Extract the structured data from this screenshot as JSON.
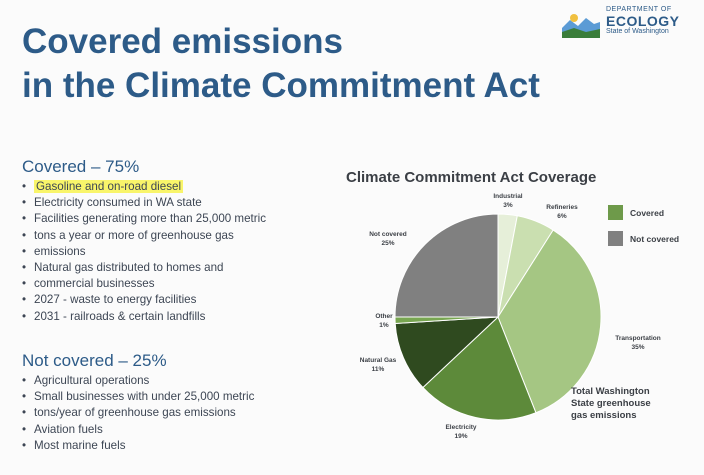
{
  "title": {
    "line1": "Covered emissions",
    "line2": "in the Climate Commitment Act"
  },
  "logo": {
    "line1": "DEPARTMENT OF",
    "line2": "ECOLOGY",
    "line3": "State of Washington"
  },
  "covered": {
    "heading": "Covered – 75%",
    "items": [
      "Gasoline and on-road diesel",
      "Electricity consumed in WA state",
      "Facilities generating more than 25,000 metric",
      "tons a year or more of greenhouse gas",
      "emissions",
      "Natural gas distributed to homes and",
      "commercial businesses",
      "2027 - waste to energy facilities",
      "2031 - railroads & certain landfills"
    ]
  },
  "not_covered": {
    "heading": "Not covered – 25%",
    "items": [
      "Agricultural operations",
      "Small businesses with under 25,000 metric",
      "tons/year of greenhouse gas emissions",
      "Aviation fuels",
      "Most marine fuels"
    ]
  },
  "caption": {
    "line1": "Total Washington",
    "line2": "State greenhouse",
    "line3": "gas emissions"
  },
  "colors": {
    "title": "#2d5b88",
    "covered": "#6e9a4a",
    "not_covered": "#808080",
    "highlight": "#f9f56a"
  },
  "chart_data": {
    "type": "pie",
    "title": "Climate Commitment Act Coverage",
    "legend": {
      "placement": "right",
      "entries": [
        "Covered",
        "Not covered"
      ]
    },
    "slices": [
      {
        "name": "Industrial",
        "value": 3,
        "label": "3%",
        "group": "Covered",
        "color": "#e6efd9"
      },
      {
        "name": "Refineries",
        "value": 6,
        "label": "6%",
        "group": "Covered",
        "color": "#cadfb0"
      },
      {
        "name": "Transportation",
        "value": 35,
        "label": "35%",
        "group": "Covered",
        "color": "#a5c683"
      },
      {
        "name": "Electricity",
        "value": 19,
        "label": "19%",
        "group": "Covered",
        "color": "#5d8a3a"
      },
      {
        "name": "Natural Gas",
        "value": 11,
        "label": "11%",
        "group": "Covered",
        "color": "#2f4a1f"
      },
      {
        "name": "Other",
        "value": 1,
        "label": "1%",
        "group": "Covered",
        "color": "#78a651"
      },
      {
        "name": "Not covered",
        "value": 25,
        "label": "25%",
        "group": "Not covered",
        "color": "#808080"
      }
    ]
  }
}
